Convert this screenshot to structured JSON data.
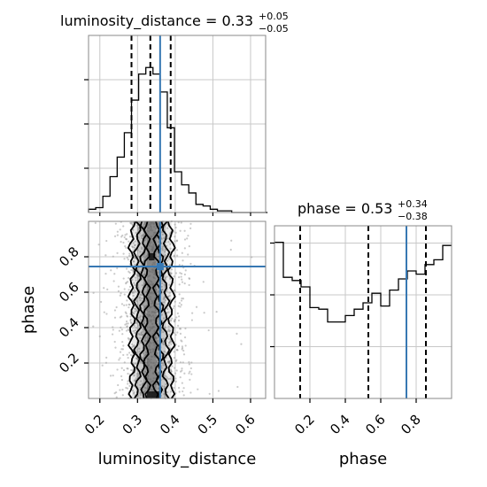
{
  "chart_data": {
    "type": "corner",
    "parameters": [
      "luminosity_distance",
      "phase"
    ],
    "truths": {
      "luminosity_distance": 0.36,
      "phase": 0.745
    },
    "colors": {
      "truth": "#3778b3",
      "hist": "#000000",
      "grid": "#c8c8c8",
      "frame": "#888888",
      "points": "#9e9e9e"
    },
    "grid": true,
    "panels": {
      "luminosity_distance_hist": {
        "title": {
          "name": "luminosity_distance = 0.33",
          "plus": "+0.05",
          "minus": "−0.05"
        },
        "xlim": [
          0.17,
          0.64
        ],
        "quantiles": [
          0.284,
          0.334,
          0.388
        ],
        "bins": {
          "edges": [
            0.17,
            0.189,
            0.208,
            0.227,
            0.246,
            0.265,
            0.284,
            0.303,
            0.322,
            0.341,
            0.36,
            0.379,
            0.398,
            0.417,
            0.436,
            0.455,
            0.474,
            0.493,
            0.512,
            0.531,
            0.55,
            0.569,
            0.588,
            0.607,
            0.626,
            0.645
          ],
          "counts": [
            0.02,
            0.03,
            0.1,
            0.22,
            0.34,
            0.49,
            0.69,
            0.85,
            0.89,
            0.85,
            0.74,
            0.52,
            0.25,
            0.17,
            0.12,
            0.05,
            0.04,
            0.02,
            0.01,
            0.01,
            0.0,
            0.0,
            0.0,
            0.0,
            0.0
          ]
        }
      },
      "phase_hist": {
        "title": {
          "name": "phase = 0.53",
          "plus": "+0.34",
          "minus": "−0.38"
        },
        "xlim": [
          0.0,
          1.0
        ],
        "quantiles": [
          0.145,
          0.53,
          0.855
        ],
        "bins": {
          "edges": [
            0,
            0.05,
            0.1,
            0.15,
            0.2,
            0.25,
            0.3,
            0.35,
            0.4,
            0.45,
            0.5,
            0.55,
            0.6,
            0.65,
            0.7,
            0.75,
            0.8,
            0.85,
            0.9,
            0.95,
            1.0
          ],
          "counts": [
            0.98,
            0.76,
            0.74,
            0.7,
            0.57,
            0.56,
            0.48,
            0.48,
            0.52,
            0.56,
            0.6,
            0.66,
            0.58,
            0.68,
            0.75,
            0.8,
            0.78,
            0.84,
            0.87,
            0.96
          ]
        }
      },
      "joint": {
        "xlim": [
          0.17,
          0.64
        ],
        "ylim": [
          0.0,
          1.0
        ],
        "contours_x": [
          {
            "left": 0.285,
            "right": 0.39
          },
          {
            "left": 0.3,
            "right": 0.375
          },
          {
            "left": 0.315,
            "right": 0.36
          },
          {
            "left": 0.325,
            "right": 0.35
          }
        ]
      }
    },
    "ticks": {
      "luminosity_distance": [
        0.2,
        0.3,
        0.4,
        0.5,
        0.6
      ],
      "phase_x": [
        0.2,
        0.4,
        0.6,
        0.8
      ],
      "phase_y": [
        0.2,
        0.4,
        0.6,
        0.8
      ]
    },
    "tick_labels": {
      "luminosity_distance": [
        "0.2",
        "0.3",
        "0.4",
        "0.5",
        "0.6"
      ],
      "phase_x": [
        "0.2",
        "0.4",
        "0.6",
        "0.8"
      ],
      "phase_y": [
        "0.2",
        "0.4",
        "0.6",
        "0.8"
      ]
    },
    "xlabels": {
      "luminosity_distance": "luminosity_distance",
      "phase": "phase"
    },
    "ylabel": "phase"
  }
}
